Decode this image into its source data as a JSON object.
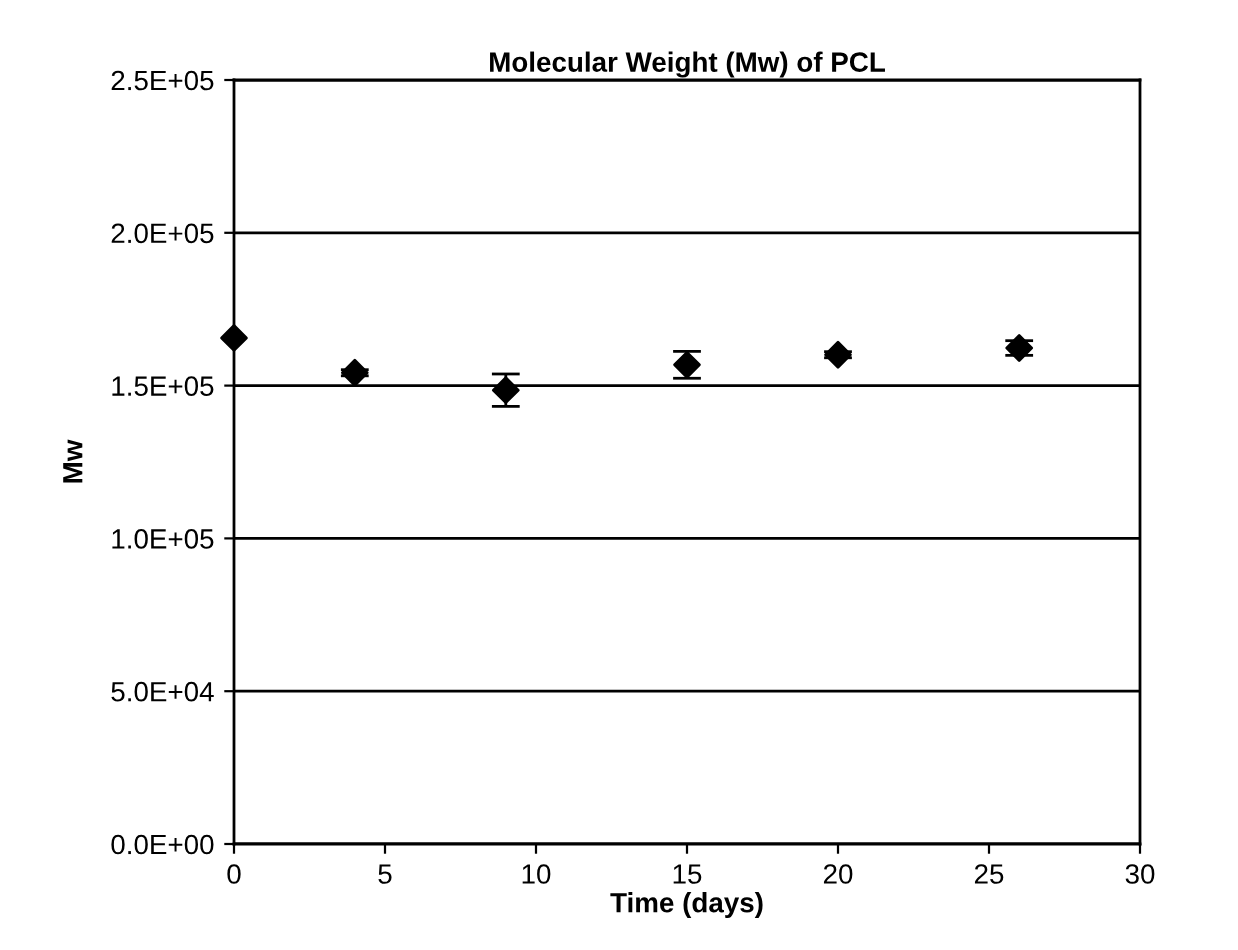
{
  "chart_data": {
    "type": "scatter",
    "title": "Molecular Weight (Mw) of PCL",
    "xlabel": "Time (days)",
    "ylabel": "Mw",
    "x": [
      0,
      4,
      9,
      15,
      20,
      26
    ],
    "values": [
      165600,
      154200,
      148500,
      156800,
      160100,
      162300
    ],
    "errors": [
      null,
      1000,
      5300,
      4400,
      1000,
      2400
    ],
    "color": "#000000",
    "marker": "diamond",
    "xlim": [
      0,
      30
    ],
    "xticks": [
      0,
      5,
      10,
      15,
      20,
      25,
      30
    ],
    "ylim": [
      0,
      250000
    ],
    "yticks": [
      {
        "value": 0,
        "label": "0.0E+00"
      },
      {
        "value": 50000,
        "label": "5.0E+04"
      },
      {
        "value": 100000,
        "label": "1.0E+05"
      },
      {
        "value": 150000,
        "label": "1.5E+05"
      },
      {
        "value": 200000,
        "label": "2.0E+05"
      },
      {
        "value": 250000,
        "label": "2.5E+05"
      }
    ],
    "grid": "y"
  }
}
